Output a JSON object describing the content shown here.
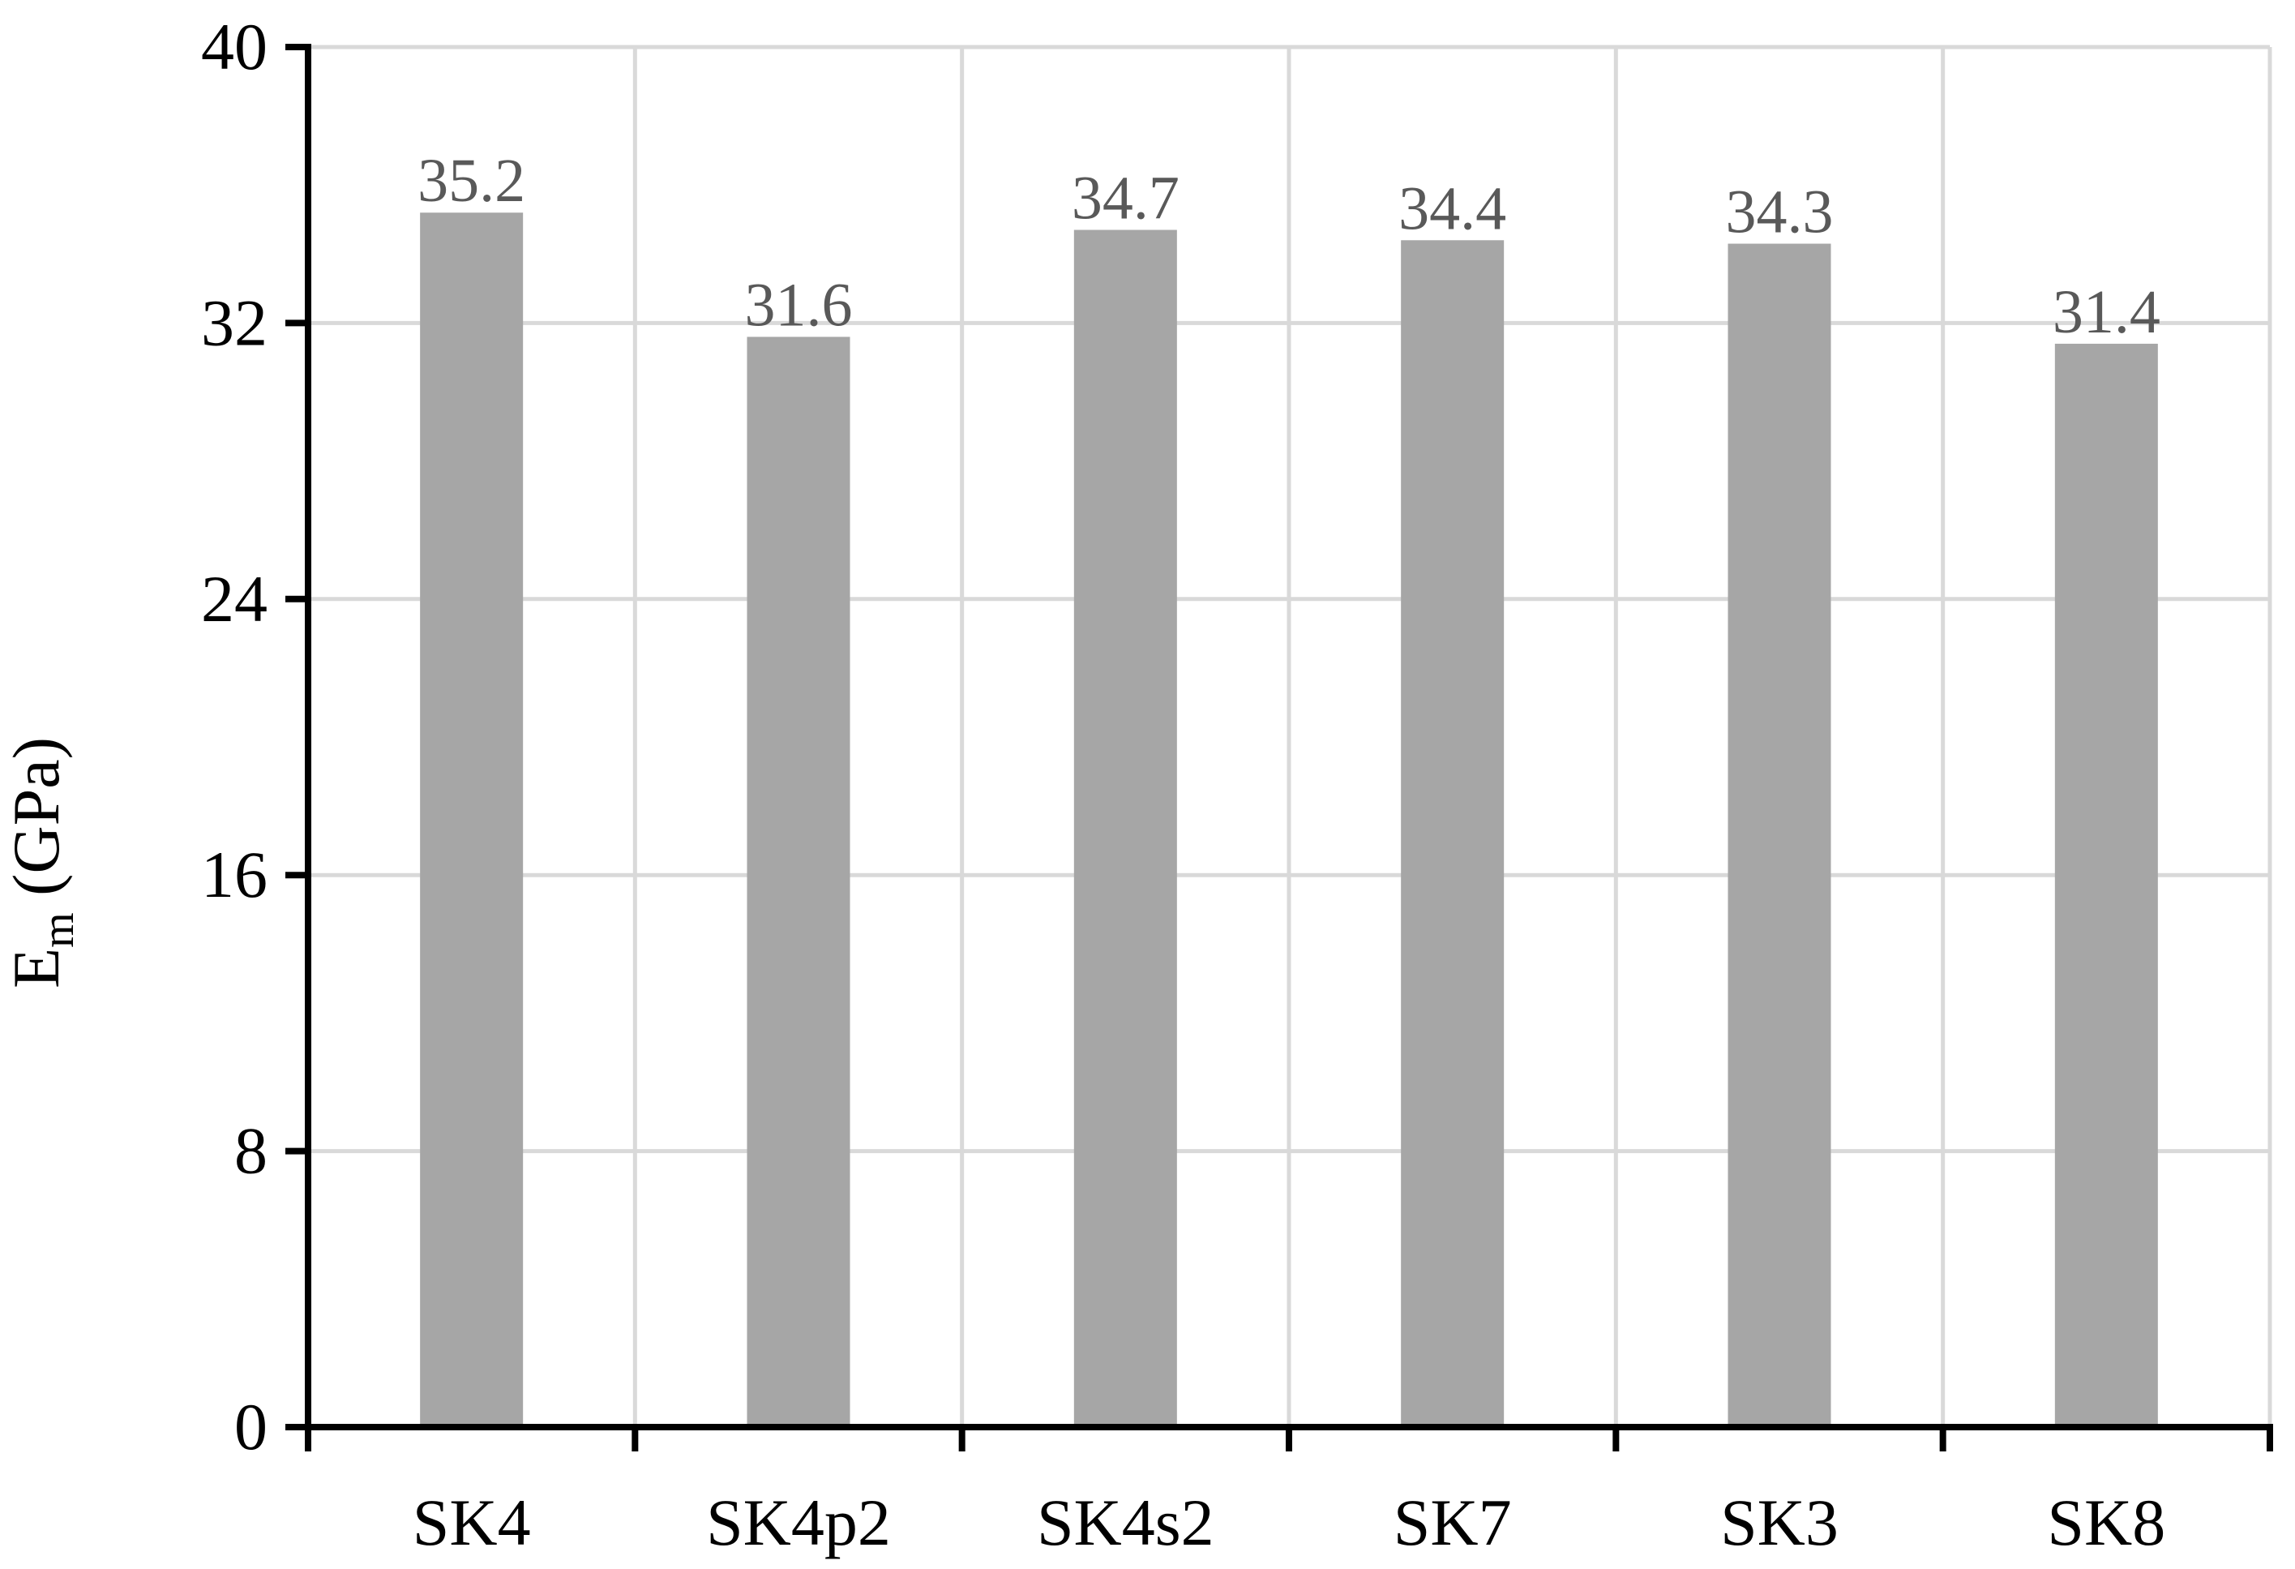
{
  "chart_data": {
    "type": "bar",
    "categories": [
      "SK4",
      "SK4p2",
      "SK4s2",
      "SK7",
      "SK3",
      "SK8"
    ],
    "values": [
      35.2,
      31.6,
      34.7,
      34.4,
      34.3,
      31.4
    ],
    "data_labels": [
      "35.2",
      "31.6",
      "34.7",
      "34.4",
      "34.3",
      "31.4"
    ],
    "ylabel_main": "E",
    "ylabel_sub": "m",
    "ylabel_unit": " (GPa)",
    "ylim": [
      0,
      40
    ],
    "yticks": [
      0,
      8,
      16,
      24,
      32,
      40
    ],
    "ytick_labels": [
      "0",
      "8",
      "16",
      "24",
      "32",
      "40"
    ],
    "grid": true,
    "bar_color": "#a6a6a6",
    "label_color": "#595959",
    "grid_color": "#d9d9d9",
    "axis_color": "#000000"
  }
}
